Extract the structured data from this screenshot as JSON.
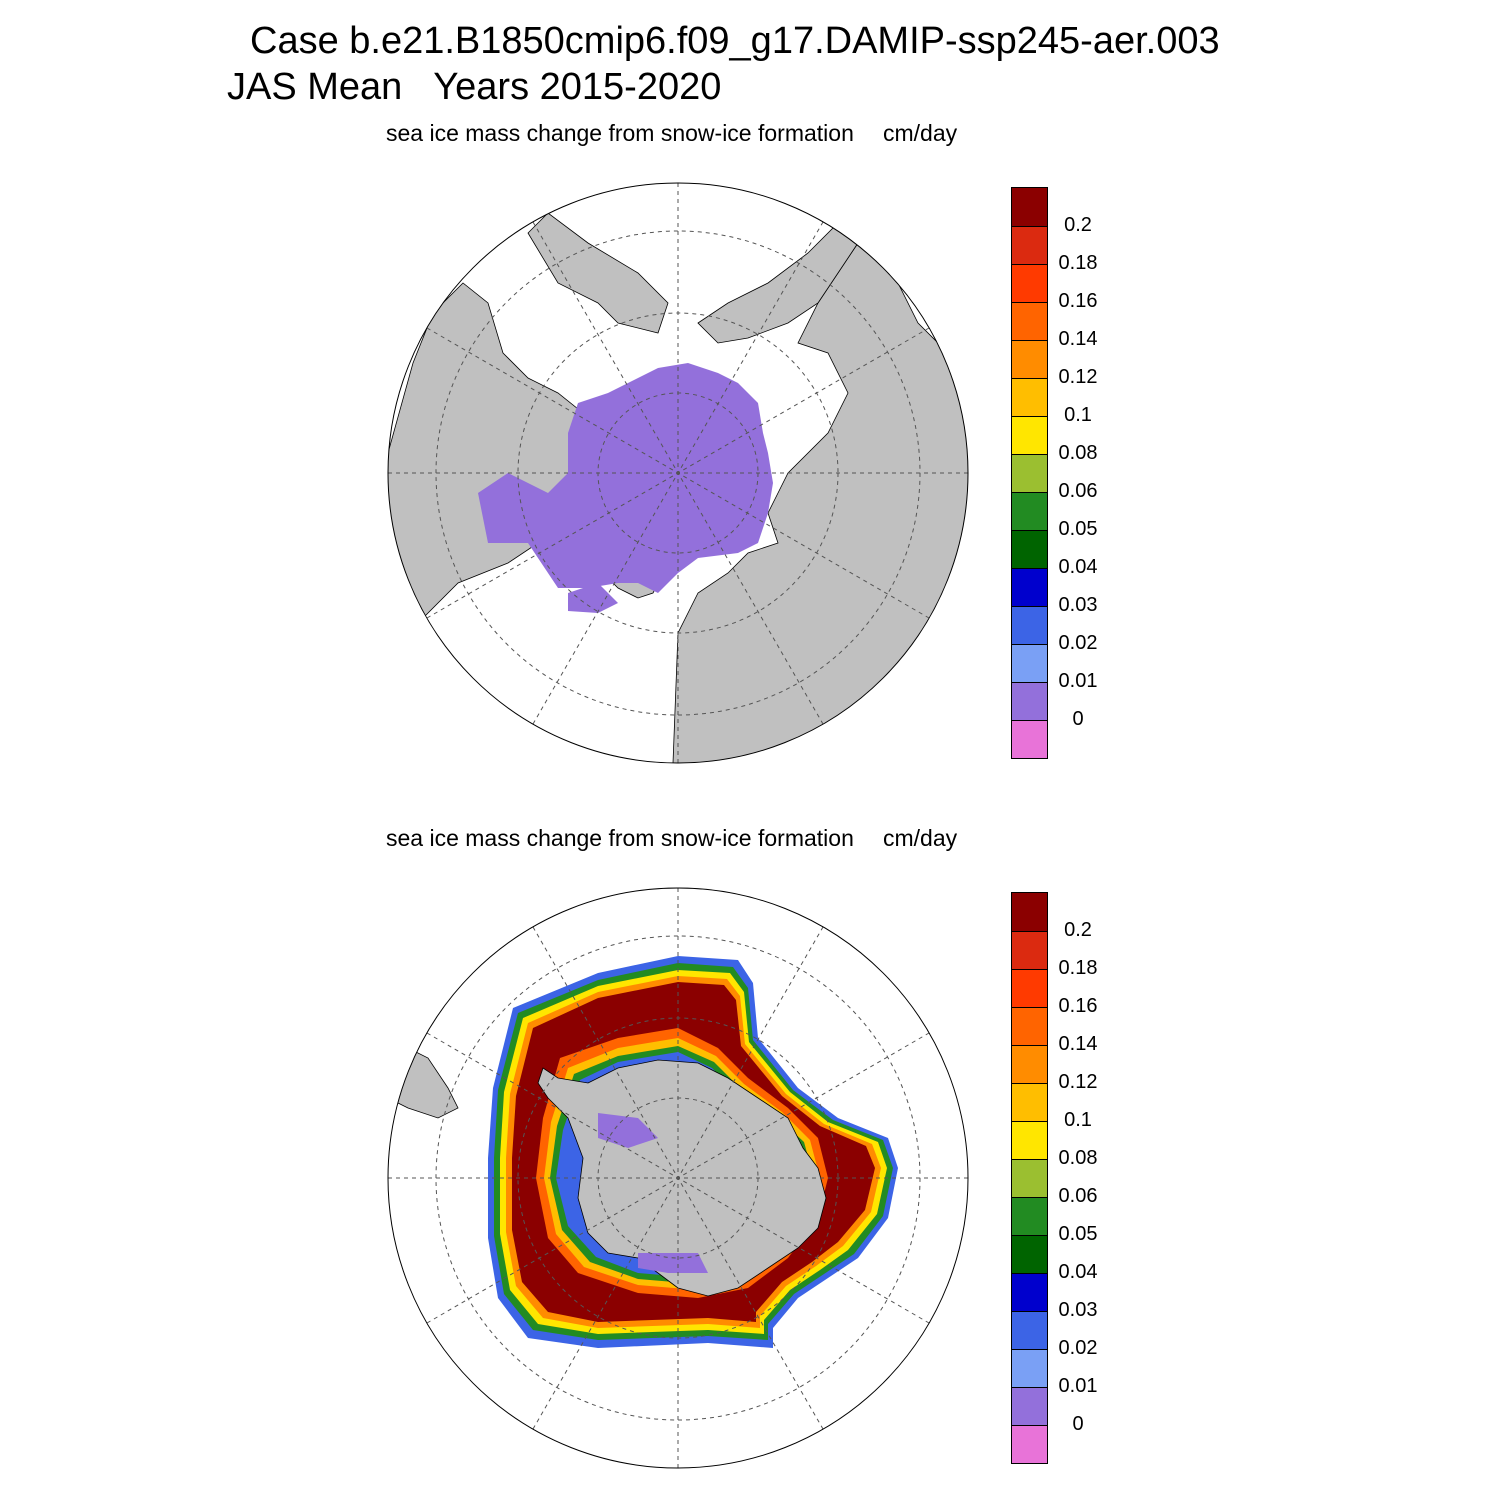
{
  "header": {
    "line1": "Case b.e21.B1850cmip6.f09_g17.DAMIP-ssp245-aer.003",
    "line2": "JAS Mean   Years 2015-2020"
  },
  "panels": [
    {
      "title": "sea ice mass change from snow-ice formation",
      "units": "cm/day",
      "hemisphere": "north"
    },
    {
      "title": "sea ice mass change from snow-ice formation",
      "units": "cm/day",
      "hemisphere": "south"
    }
  ],
  "colorbar": {
    "colors": [
      "#8b0000",
      "#db2a10",
      "#ff3a00",
      "#ff6400",
      "#ff8c00",
      "#ffbe00",
      "#ffe600",
      "#9bbf30",
      "#228b22",
      "#006400",
      "#0000cd",
      "#3c64e6",
      "#7aa0f5",
      "#9370db",
      "#e873d8"
    ],
    "labels": [
      "0.2",
      "0.18",
      "0.16",
      "0.14",
      "0.12",
      "0.1",
      "0.08",
      "0.06",
      "0.05",
      "0.04",
      "0.03",
      "0.02",
      "0.01",
      "0"
    ]
  },
  "map_colors": {
    "land": "#c0c0c0",
    "ocean": "#ffffff",
    "north_ice": "#9370db"
  }
}
